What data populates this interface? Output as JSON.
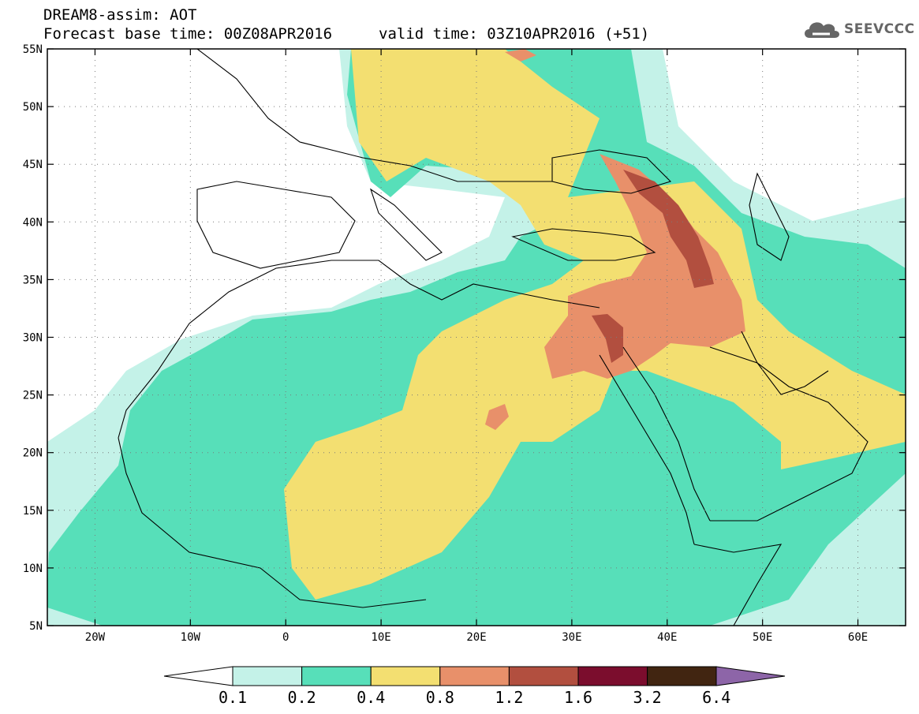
{
  "header": {
    "title": "DREAM8-assim: AOT",
    "base_time": "Forecast base time: 00Z08APR2016",
    "valid_time": "valid time: 03Z10APR2016 (+51)"
  },
  "logo": {
    "text": "SEEVCCC",
    "icon": "cloud-icon"
  },
  "axes": {
    "lat_labels": [
      "55N",
      "50N",
      "45N",
      "40N",
      "35N",
      "30N",
      "25N",
      "20N",
      "15N",
      "10N",
      "5N"
    ],
    "lon_labels": [
      "20W",
      "10W",
      "0",
      "10E",
      "20E",
      "30E",
      "40E",
      "50E",
      "60E"
    ],
    "lat_values": [
      55,
      50,
      45,
      40,
      35,
      30,
      25,
      20,
      15,
      10,
      5
    ],
    "lon_values": [
      -20,
      -10,
      0,
      10,
      20,
      30,
      40,
      50,
      60
    ],
    "lon_range": [
      -25,
      65
    ],
    "lat_range": [
      5,
      55
    ],
    "grid": "dotted"
  },
  "colorbar": {
    "labels": [
      "0.1",
      "0.2",
      "0.4",
      "0.8",
      "1.2",
      "1.6",
      "3.2",
      "6.4"
    ],
    "colors": [
      "#c4f2e8",
      "#57dfb9",
      "#f3df71",
      "#e8906a",
      "#b24f3f",
      "#7b0d2d",
      "#412511"
    ],
    "low_extend_color": "#ffffff",
    "high_extend_color": "#8d65a8"
  },
  "colors": {
    "c1": "#c4f2e8",
    "c2": "#57dfb9",
    "c3": "#f3df71",
    "c4": "#e8906a",
    "c5": "#b24f3f"
  }
}
